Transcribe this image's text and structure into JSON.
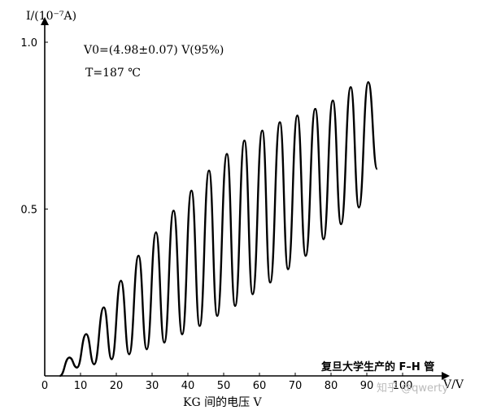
{
  "chart_data": {
    "type": "line",
    "title": "",
    "xlabel": "V/V",
    "xlabel_bottom": "KG 间的电压 V",
    "ylabel": "I/(10⁻⁷A)",
    "xlim": [
      0,
      100
    ],
    "ylim": [
      0,
      1.0
    ],
    "x_ticks": [
      0,
      10,
      20,
      30,
      40,
      50,
      60,
      70,
      80,
      90,
      100
    ],
    "y_ticks": [
      0.5,
      1.0
    ],
    "grid": false,
    "annotations": {
      "v0": "V0=(4.98±0.07) V(95%)",
      "temperature": "T=187 ℃"
    },
    "caption": "复旦大学生产的 F–H 管",
    "watermark": "知乎 @qwerty",
    "series": [
      {
        "peaks": [
          {
            "x": 6.9,
            "y": 0.055
          },
          {
            "x": 11.6,
            "y": 0.125
          },
          {
            "x": 16.5,
            "y": 0.205
          },
          {
            "x": 21.3,
            "y": 0.285
          },
          {
            "x": 26.2,
            "y": 0.36
          },
          {
            "x": 31.1,
            "y": 0.43
          },
          {
            "x": 36.0,
            "y": 0.495
          },
          {
            "x": 41.0,
            "y": 0.555
          },
          {
            "x": 45.9,
            "y": 0.615
          },
          {
            "x": 50.9,
            "y": 0.665
          },
          {
            "x": 55.8,
            "y": 0.705
          },
          {
            "x": 60.8,
            "y": 0.735
          },
          {
            "x": 65.7,
            "y": 0.76
          },
          {
            "x": 70.6,
            "y": 0.78
          },
          {
            "x": 75.6,
            "y": 0.8
          },
          {
            "x": 80.5,
            "y": 0.825
          },
          {
            "x": 85.5,
            "y": 0.865
          },
          {
            "x": 90.4,
            "y": 0.88
          }
        ],
        "valleys": [
          {
            "x": 9.0,
            "y": 0.025
          },
          {
            "x": 13.8,
            "y": 0.035
          },
          {
            "x": 18.7,
            "y": 0.05
          },
          {
            "x": 23.6,
            "y": 0.065
          },
          {
            "x": 28.5,
            "y": 0.08
          },
          {
            "x": 33.4,
            "y": 0.1
          },
          {
            "x": 38.4,
            "y": 0.125
          },
          {
            "x": 43.3,
            "y": 0.15
          },
          {
            "x": 48.2,
            "y": 0.18
          },
          {
            "x": 53.2,
            "y": 0.21
          },
          {
            "x": 58.1,
            "y": 0.245
          },
          {
            "x": 63.0,
            "y": 0.28
          },
          {
            "x": 68.0,
            "y": 0.32
          },
          {
            "x": 72.9,
            "y": 0.36
          },
          {
            "x": 77.9,
            "y": 0.41
          },
          {
            "x": 82.8,
            "y": 0.455
          },
          {
            "x": 87.8,
            "y": 0.505
          }
        ],
        "start": {
          "x": 4.2,
          "y": 0.0
        },
        "end": {
          "x": 92.9,
          "y": 0.62
        }
      }
    ]
  }
}
